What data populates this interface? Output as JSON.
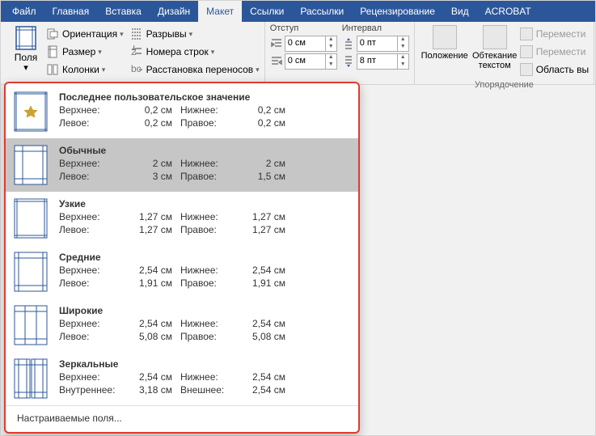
{
  "tabs": {
    "file": "Файл",
    "home": "Главная",
    "insert": "Вставка",
    "design": "Дизайн",
    "layout": "Макет",
    "references": "Ссылки",
    "mailings": "Рассылки",
    "review": "Рецензирование",
    "view": "Вид",
    "acrobat": "ACROBAT"
  },
  "ribbon": {
    "margins_btn": "Поля",
    "orientation": "Ориентация",
    "size": "Размер",
    "columns": "Колонки",
    "breaks": "Разрывы",
    "line_numbers": "Номера строк",
    "hyphenation": "Расстановка переносов",
    "indent_label": "Отступ",
    "spacing_label": "Интервал",
    "indent_left": "0 см",
    "indent_right": "0 см",
    "space_before": "0 пт",
    "space_after": "8 пт",
    "position": "Положение",
    "wrap": "Обтекание текстом",
    "arrange_label": "Упорядочение",
    "move_fwd": "Перемести",
    "move_back": "Перемести",
    "selection": "Область вы"
  },
  "dropdown": {
    "options": [
      {
        "title": "Последнее пользовательское значение",
        "l1": "Верхнее:",
        "v1": "0,2 см",
        "l2": "Нижнее:",
        "v2": "0,2 см",
        "l3": "Левое:",
        "v3": "0,2 см",
        "l4": "Правое:",
        "v4": "0,2 см",
        "icon": "last"
      },
      {
        "title": "Обычные",
        "l1": "Верхнее:",
        "v1": "2 см",
        "l2": "Нижнее:",
        "v2": "2 см",
        "l3": "Левое:",
        "v3": "3 см",
        "l4": "Правое:",
        "v4": "1,5 см",
        "icon": "normal",
        "selected": true
      },
      {
        "title": "Узкие",
        "l1": "Верхнее:",
        "v1": "1,27 см",
        "l2": "Нижнее:",
        "v2": "1,27 см",
        "l3": "Левое:",
        "v3": "1,27 см",
        "l4": "Правое:",
        "v4": "1,27 см",
        "icon": "narrow"
      },
      {
        "title": "Средние",
        "l1": "Верхнее:",
        "v1": "2,54 см",
        "l2": "Нижнее:",
        "v2": "2,54 см",
        "l3": "Левое:",
        "v3": "1,91 см",
        "l4": "Правое:",
        "v4": "1,91 см",
        "icon": "moderate"
      },
      {
        "title": "Широкие",
        "l1": "Верхнее:",
        "v1": "2,54 см",
        "l2": "Нижнее:",
        "v2": "2,54 см",
        "l3": "Левое:",
        "v3": "5,08 см",
        "l4": "Правое:",
        "v4": "5,08 см",
        "icon": "wide"
      },
      {
        "title": "Зеркальные",
        "l1": "Верхнее:",
        "v1": "2,54 см",
        "l2": "Нижнее:",
        "v2": "2,54 см",
        "l3": "Внутреннее:",
        "v3": "3,18 см",
        "l4": "Внешнее:",
        "v4": "2,54 см",
        "icon": "mirror"
      }
    ],
    "footer": "Настраиваемые поля..."
  },
  "style": {
    "accent": "#2b579a",
    "dropdown_border": "#e03b2f",
    "bg": "#f1f1f1",
    "selected_bg": "#c6c6c6",
    "icon_stroke": "#2b579a",
    "icon_fill": "#ffffff",
    "star_fill": "#cda434"
  }
}
